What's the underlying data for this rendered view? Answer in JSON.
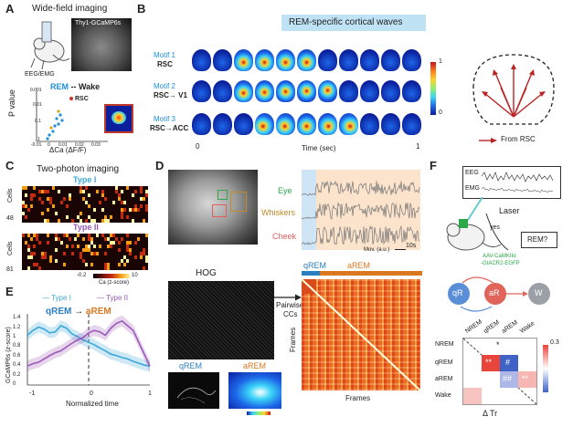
{
  "panels": {
    "A": {
      "label": "A",
      "title": "Wide-field imaging",
      "mouse_tag": "Thy1-GCaMP6s",
      "rec_label": "EEG/EMG",
      "scatter_title": "REM -- Wake",
      "scatter_title_rem": "REM",
      "scatter_title_rest": "-- Wake",
      "highlight": "RSC",
      "ylabel": "P value",
      "xlabel": "ΔCa (ΔF/F)",
      "yticks": [
        "0.001",
        "0.01",
        "0.1",
        "1"
      ],
      "xticks": [
        "-0.01",
        "0",
        "0.01",
        "0.02",
        "0.03"
      ],
      "colors": {
        "rem": "#1f8fd6",
        "rsc": "#c0392b"
      }
    },
    "B": {
      "label": "B",
      "banner": "REM-specific cortical waves",
      "motifs": [
        {
          "name": "Motif 1",
          "region": "RSC"
        },
        {
          "name": "Motif 2",
          "region": "RSC→ V1"
        },
        {
          "name": "Motif 3",
          "region": "RSC→ACC"
        }
      ],
      "time_label": "Time (sec)",
      "time_start": "0",
      "time_end": "1",
      "colorbar": {
        "max": "1",
        "min": "0"
      },
      "legend": "From RSC"
    },
    "C": {
      "label": "C",
      "title": "Two-photon imaging",
      "type1": "Type I",
      "type2": "Type II",
      "ylabel": "Cells",
      "n1": "48",
      "n2": "81",
      "cb_label": "Ca (z-score)",
      "cb_min": "-0.2",
      "cb_max": "10",
      "colors": {
        "type1": "#3aa8d8",
        "type2": "#9b59b6"
      }
    },
    "D": {
      "label": "D",
      "traces": [
        {
          "name": "Eye",
          "color": "#2aa84a"
        },
        {
          "name": "Whiskers",
          "color": "#c08a2a"
        },
        {
          "name": "Cheek",
          "color": "#e0605a"
        }
      ],
      "mov_label": "Mov. (a.u.)",
      "scale_label": "10s",
      "qrem": "qREM",
      "arem": "aREM",
      "hog": "HOG",
      "pairwise": "Pairwise",
      "ccs": "CCs",
      "frames_x": "Frames",
      "frames_y": "Frames",
      "colors": {
        "qrem": "#2a7fc0",
        "arem": "#d9781e"
      }
    },
    "E": {
      "label": "E",
      "legend_type1": "Type I",
      "legend_type2": "Type II",
      "qrem": "qREM",
      "arrow": "→",
      "arem": "aREM",
      "ylabel": "GCaMP6s (z-score)",
      "xlabel": "Normalized time",
      "yticks": [
        "0",
        "0.2",
        "0.4",
        "0.6",
        "0.8",
        "1",
        "1.2",
        "1.4"
      ],
      "xticks": [
        "-1",
        "0",
        "1"
      ],
      "series_type1": [
        1.05,
        1.15,
        1.22,
        1.18,
        1.1,
        1.12,
        1.25,
        1.2,
        1.08,
        1.02,
        0.95,
        0.9,
        0.85,
        0.78,
        0.72,
        0.65,
        0.62,
        0.58,
        0.55,
        0.5,
        0.46,
        0.42,
        0.4
      ],
      "series_type2": [
        0.4,
        0.45,
        0.48,
        0.55,
        0.62,
        0.68,
        0.72,
        0.8,
        0.88,
        0.95,
        1.0,
        1.1,
        1.15,
        1.12,
        1.05,
        1.2,
        1.3,
        1.35,
        1.25,
        1.15,
        0.9,
        0.65,
        0.4
      ]
    },
    "F": {
      "label": "F",
      "eeg": "EEG",
      "emg": "EMG",
      "laser": "Laser",
      "yes": "yes",
      "rem_q": "REM?",
      "virus_line1": "AAV-CaMKIIα",
      "virus_line2": "-GtACR2-EGFP",
      "nodes": [
        "qR",
        "aR",
        "W"
      ],
      "rows": [
        "NREM",
        "qREM",
        "aREM",
        "Wake"
      ],
      "cols": [
        "NREM",
        "qREM",
        "aREM",
        "Wake"
      ],
      "cell_marks": {
        "star": "*",
        "dstar": "**",
        "hash": "#",
        "dhash": "##"
      },
      "cb_max": "0.3",
      "xlabel": "Δ Tr",
      "colors": {
        "node_qr": "#5a8fd8",
        "node_ar": "#e0645a",
        "node_w": "#9aa0a6",
        "red": "#e8453c",
        "blue": "#3f62c7"
      }
    }
  }
}
